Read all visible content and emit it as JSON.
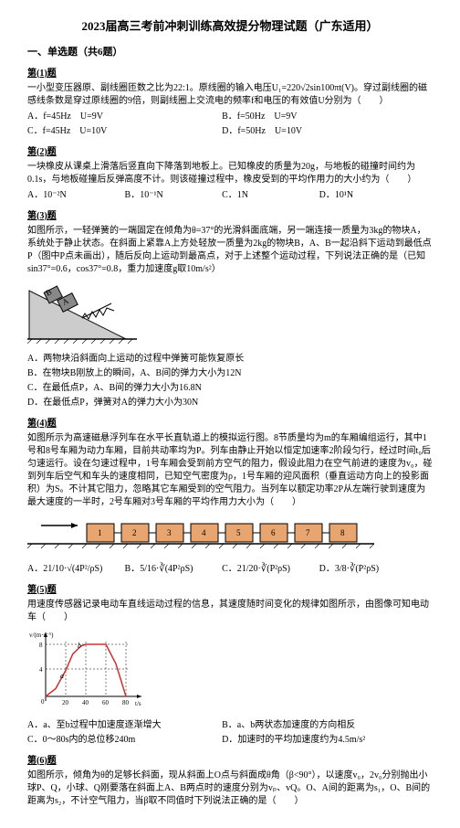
{
  "title": "2023届高三考前冲刺训练高效提分物理试题（广东适用）",
  "section1_header": "一、单选题（共6题）",
  "q1": {
    "label": "第(1)题",
    "text": "一小型变压器原、副线圈匝数之比为22:1。原线圈的输入电压U₁=220√2sin100πt(V)。穿过副线圈的磁感线条数是穿过原线圈的9倍，则副线圈上交流电的频率f和电压的有效值U分别为（　　）",
    "optA": "A．f=45Hz　U=9V",
    "optB": "B．f=50Hz　U=9V",
    "optC": "C．f=45Hz　U=10V",
    "optD": "D．f=50Hz　U=10V"
  },
  "q2": {
    "label": "第(2)题",
    "text": "一块橡皮从课桌上滑落后竖直向下降落到地板上。已知橡皮的质量为20g，与地板的碰撞时间约为0.1s，与地板碰撞后反弹高度不计。则该碰撞过程中，橡皮受到的平均作用力的大小约为（　　）",
    "optA": "A．10⁻²N",
    "optB": "B．10⁻¹N",
    "optC": "C．1N",
    "optD": "D．10¹N"
  },
  "q3": {
    "label": "第(3)题",
    "text": "如图所示，一轻弹簧的一端固定在倾角为θ=37°的光滑斜面底端，另一端连接一质量为3kg的物块A，系统处于静止状态。在斜面上紧靠A上方处轻放一质量为2kg的物块B，A、B一起沿斜下运动到最低点P（图中P点未画出），随后反向上运动到最高点，对于上述整个运动过程，下列说法正确的是（已知sin37°=0.6，cos37°=0.8，重力加速度g取10m/s²）",
    "optA": "A．两物块沿斜面向上运动的过程中弹簧可能恢复原长",
    "optB": "B．在物块B刚放上的瞬间，A、B间的弹力大小为12N",
    "optC": "C．在最低点P，A、B间的弹力大小为16.8N",
    "optD": "D．在最低点P，弹簧对A的弹力大小为30N"
  },
  "q4": {
    "label": "第(4)题",
    "text": "如图所示为高速磁悬浮列车在水平长直轨道上的模拟运行图。8节质量均为m的车厢编组运行，其中1号和8号车厢为动力车厢，目前共动率均为P。列车由静止开始以恒定加速率2阶段匀行，经过时间t₀后匀速运行。设在匀速过程中，1号车厢会受到前方空气的阻力，假设此阻力在空气前进的速度为v₀，碰到列车后空气和车头的速度相同，已知空气密度为ρ，1号车厢的迎风面积（垂直运动方向上的投影面积）为S。不计其它阻力，忽略其它车厢受到的空气阻力。当列车以额定功率2P从左端行驶到速度为最大速度的一半时，2号车厢对3号车厢的平均作用力大小为（　　）",
    "optA": "A．21/10·√(4P²/ρS)",
    "optB": "B．5/16·∛(4P²ρS)",
    "optC": "C．21/20·∛(P²ρS)",
    "optD": "D．3/8·∛(P²ρS)"
  },
  "q5": {
    "label": "第(5)题",
    "text": "用速度传感器记录电动车直线运动过程的信息，其速度随时间变化的规律如图所示，由图像可知电动车（　　）",
    "optA": "A．a、至b过程中加速度逐渐增大",
    "optB": "B．a、b两状态加速度的方向相反",
    "optC": "C．0～80s内的总位移240m",
    "optD": "D．加速时的平均加速度约为4.5m/s²"
  },
  "q6": {
    "label": "第(6)题",
    "text": "如图所示，倾角为θ的足够长斜面，现从斜面上O点与斜面成θ角（β<90°），以速度v₀，2v₀分别抛出小球P、Q，小球、Q刚要落在斜面上A、B两点时的速度分别为vₚ、vQ。O、A间的距离为s₁，O、B间的距离为s₂，不计空气阻力，当β取不同值时下列说法正确的是（　　）"
  },
  "incline": {
    "bg": "#ffffff",
    "slope_fill": "#cccccc",
    "slope_stroke": "#000000",
    "block_fill": "#888888",
    "labelA": "A",
    "labelB": "B"
  },
  "train": {
    "block_fill": "#e8a56f",
    "block_stroke": "#000000",
    "arrow_stroke": "#000000",
    "labels": [
      "1",
      "2",
      "3",
      "4",
      "5",
      "6",
      "7",
      "8"
    ],
    "ground_stroke": "#000000"
  },
  "graph": {
    "axis_stroke": "#000000",
    "curve_stroke": "#d03030",
    "label_color": "#000000",
    "ylabel": "v/(m·s⁻¹)",
    "xlabel": "t/s",
    "xmax": 80,
    "ymax": 8,
    "xticks": [
      20,
      40,
      60,
      80
    ],
    "yticks": [
      4,
      8
    ],
    "points_a": "a",
    "points_b": "b",
    "curve": [
      [
        0,
        0
      ],
      [
        10,
        1.2
      ],
      [
        20,
        4
      ],
      [
        27,
        6.5
      ],
      [
        35,
        7.7
      ],
      [
        40,
        8
      ],
      [
        50,
        8
      ],
      [
        60,
        8
      ],
      [
        70,
        5
      ],
      [
        80,
        0
      ]
    ]
  }
}
